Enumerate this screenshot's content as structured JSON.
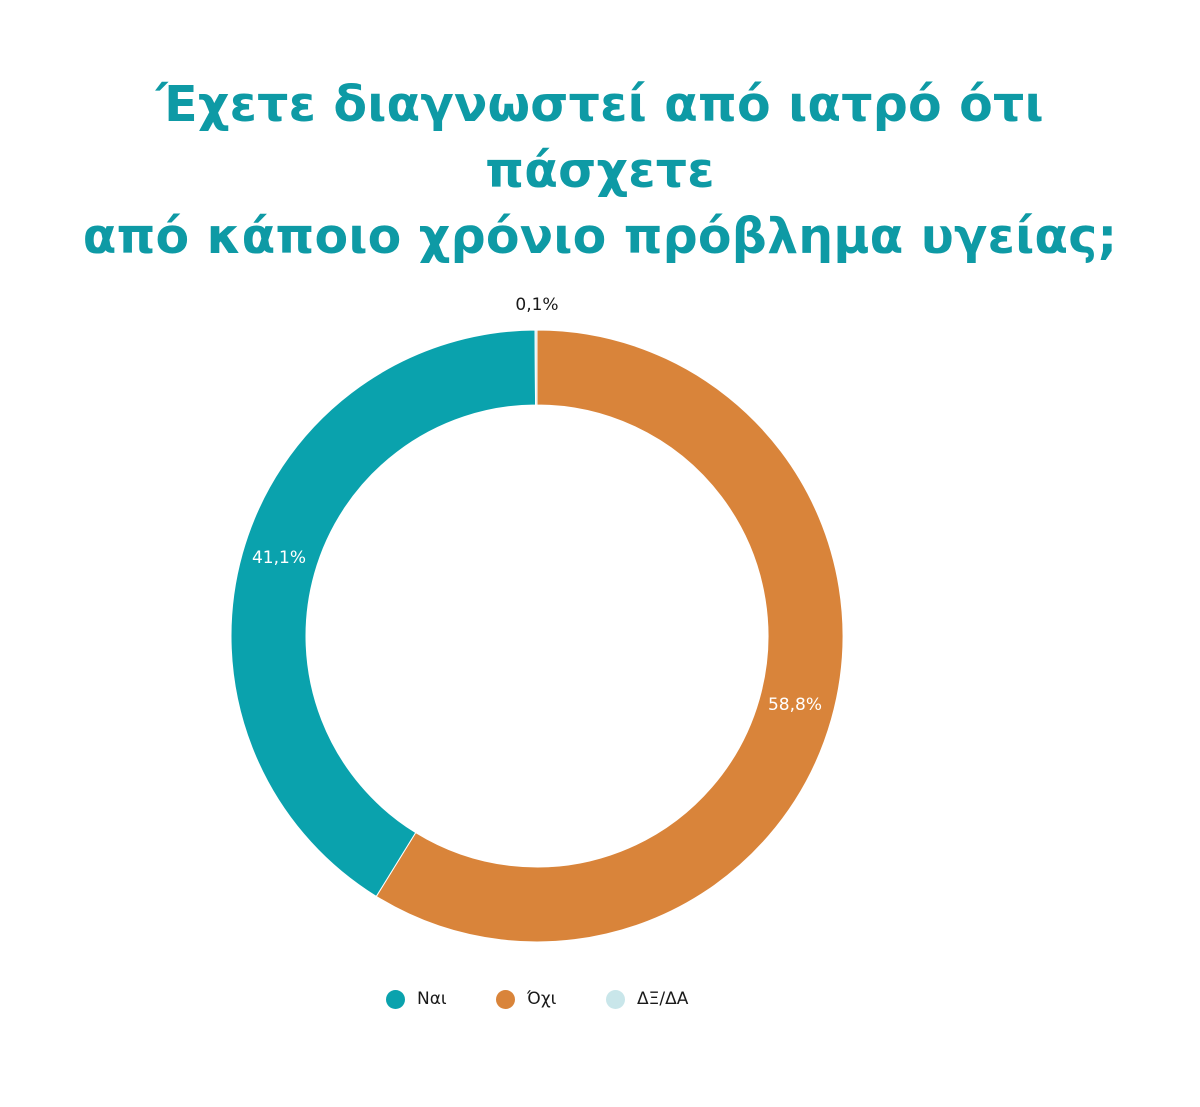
{
  "title": {
    "line1": "Έχετε διαγνωστεί από ιατρό ότι πάσχετε",
    "line2": "από κάποιο χρόνιο πρόβλημα υγείας;"
  },
  "chart_data": {
    "type": "pie",
    "donut": true,
    "title": "Έχετε διαγνωστεί από ιατρό ότι πάσχετε από κάποιο χρόνιο πρόβλημα υγείας;",
    "unit": "%",
    "categories": [
      "Ναι",
      "Όχι",
      "ΔΞ/ΔΑ"
    ],
    "values": [
      41.1,
      58.8,
      0.1
    ],
    "value_labels": [
      "41,1%",
      "58,8%",
      "0,1%"
    ],
    "colors": [
      "#0aa2ad",
      "#d9843a",
      "#c9e6ea"
    ],
    "label_colors": [
      "#ffffff",
      "#ffffff",
      "#1a1a1a"
    ],
    "legend_position": "bottom"
  }
}
